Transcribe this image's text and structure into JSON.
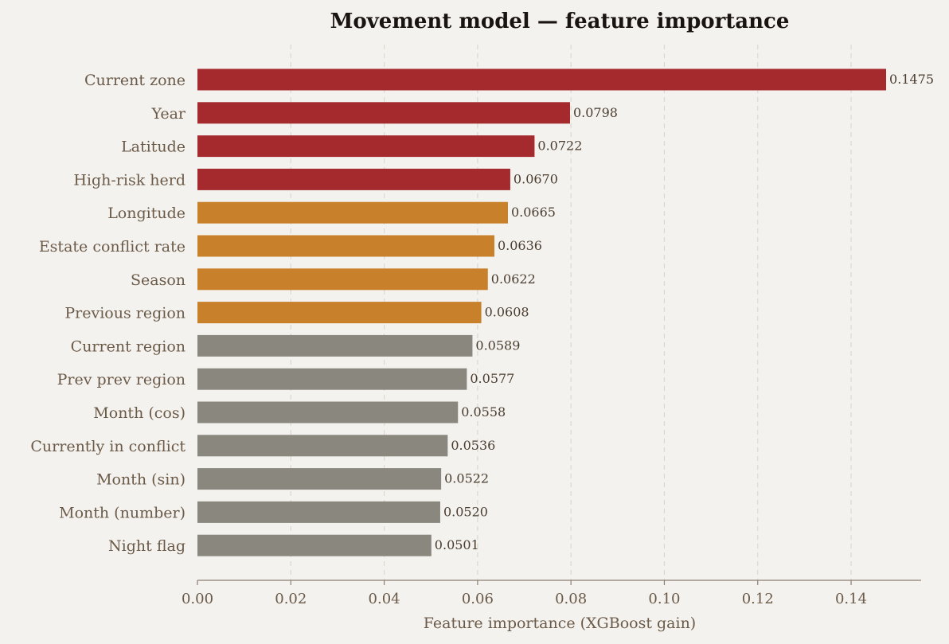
{
  "chart_data": {
    "type": "bar",
    "orientation": "horizontal",
    "title": "Movement model — feature importance",
    "xlabel": "Feature importance (XGBoost gain)",
    "ylabel": "",
    "xlim": [
      0,
      0.155
    ],
    "xticks": [
      "0.00",
      "0.02",
      "0.04",
      "0.06",
      "0.08",
      "0.10",
      "0.12",
      "0.14"
    ],
    "grid": "vertical-dashed",
    "categories": [
      "Current zone",
      "Year",
      "Latitude",
      "High-risk herd",
      "Longitude",
      "Estate conflict rate",
      "Season",
      "Previous region",
      "Current region",
      "Prev prev region",
      "Month (cos)",
      "Currently in conflict",
      "Month (sin)",
      "Month (number)",
      "Night flag"
    ],
    "values": [
      0.1475,
      0.0798,
      0.0722,
      0.067,
      0.0665,
      0.0636,
      0.0622,
      0.0608,
      0.0589,
      0.0577,
      0.0558,
      0.0536,
      0.0522,
      0.052,
      0.0501
    ],
    "value_labels": [
      "0.1475",
      "0.0798",
      "0.0722",
      "0.0670",
      "0.0665",
      "0.0636",
      "0.0622",
      "0.0608",
      "0.0589",
      "0.0577",
      "0.0558",
      "0.0536",
      "0.0522",
      "0.0520",
      "0.0501"
    ],
    "tiers": [
      "top",
      "top",
      "top",
      "top",
      "mid",
      "mid",
      "mid",
      "mid",
      "low",
      "low",
      "low",
      "low",
      "low",
      "low",
      "low"
    ],
    "colors": {
      "top": "#a52a2e",
      "mid": "#c8812a",
      "low": "#8a877e"
    }
  }
}
